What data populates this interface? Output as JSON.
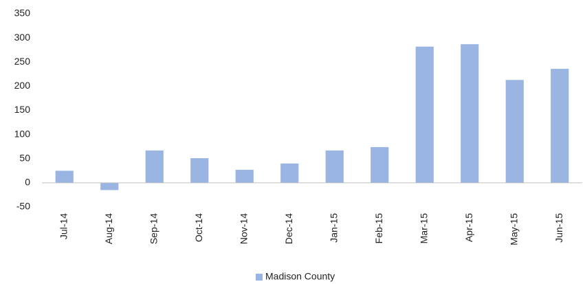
{
  "chart_data": {
    "type": "bar",
    "categories": [
      "Jul-14",
      "Aug-14",
      "Sep-14",
      "Oct-14",
      "Nov-14",
      "Dec-14",
      "Jan-15",
      "Feb-15",
      "Mar-15",
      "Apr-15",
      "May-15",
      "Jun-15"
    ],
    "series": [
      {
        "name": "Madison County",
        "color": "#9bb5e3",
        "values": [
          25,
          -15,
          67,
          51,
          27,
          40,
          67,
          74,
          282,
          287,
          213,
          236
        ]
      }
    ],
    "ylim": [
      -50,
      350
    ],
    "yticks": [
      -50,
      0,
      50,
      100,
      150,
      200,
      250,
      300,
      350
    ],
    "grid": false,
    "legend": "bottom"
  }
}
